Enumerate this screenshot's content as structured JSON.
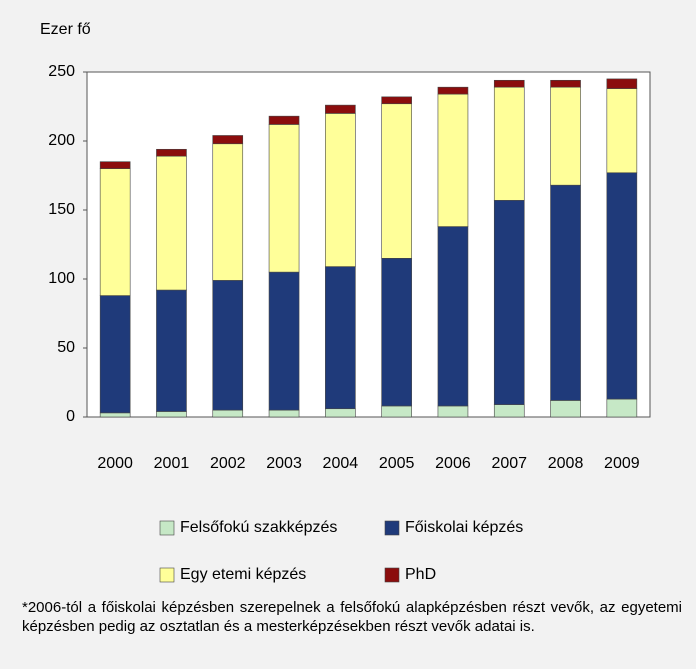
{
  "chart_data": {
    "type": "stacked_bar",
    "y_label": "Ezer fő",
    "categories": [
      "2000",
      "2001",
      "2002",
      "2003",
      "2004",
      "2005",
      "2006",
      "2007",
      "2008",
      "2009"
    ],
    "series": [
      {
        "name": "Felsőfokú szakképzés",
        "color": "#c6e8c6",
        "values": [
          3,
          4,
          5,
          5,
          6,
          8,
          8,
          9,
          12,
          13
        ]
      },
      {
        "name": "Főiskolai képzés",
        "color": "#1f3a7a",
        "values": [
          85,
          88,
          94,
          100,
          103,
          107,
          130,
          148,
          156,
          164
        ]
      },
      {
        "name": "Egy etemi képzés",
        "color": "#ffff99",
        "values": [
          92,
          97,
          99,
          107,
          111,
          112,
          96,
          82,
          71,
          61
        ]
      },
      {
        "name": "PhD",
        "color": "#8b0d0d",
        "values": [
          5,
          5,
          6,
          6,
          6,
          5,
          5,
          5,
          5,
          7
        ]
      }
    ],
    "ylim": [
      0,
      250
    ],
    "yticks": [
      0,
      50,
      100,
      150,
      200,
      250
    ],
    "footnote": "*2006-tól a főiskolai képzésben szerepelnek a felsőfokú alapképzésben részt vevők, az egyetemi képzésben pedig az osztatlan és a mesterképzésekben részt vevők adatai is."
  }
}
